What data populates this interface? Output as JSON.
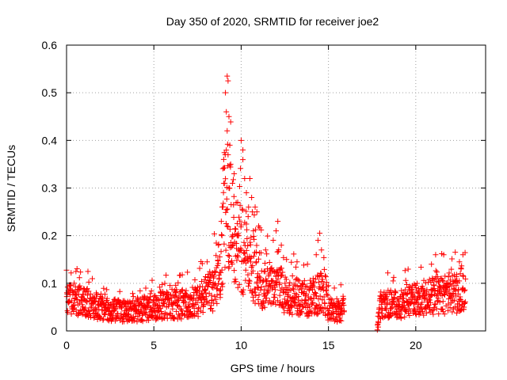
{
  "chart_data": {
    "type": "scatter",
    "title": "Day 350 of 2020, SRMTID for receiver joe2",
    "xlabel": "GPS time / hours",
    "ylabel": "SRMTID / TECUs",
    "xlim": [
      0,
      24
    ],
    "ylim": [
      0,
      0.6
    ],
    "x_ticks": [
      0,
      5,
      10,
      15,
      20
    ],
    "x_tick_labels": [
      "0",
      "5",
      "10",
      "15",
      "20"
    ],
    "y_ticks": [
      0,
      0.1,
      0.2,
      0.3,
      0.4,
      0.5,
      0.6
    ],
    "y_tick_labels": [
      "0",
      "0.1",
      "0.2",
      "0.3",
      "0.4",
      "0.5",
      "0.6"
    ],
    "grid": true,
    "marker": "+",
    "color": "#ff0000",
    "gap_hours": [
      15.9,
      17.8
    ],
    "series": [
      {
        "name": "SRMTID",
        "profile": [
          [
            0.0,
            0.07
          ],
          [
            0.5,
            0.065
          ],
          [
            1.0,
            0.06
          ],
          [
            1.5,
            0.055
          ],
          [
            2.0,
            0.05
          ],
          [
            2.5,
            0.045
          ],
          [
            3.0,
            0.042
          ],
          [
            3.5,
            0.04
          ],
          [
            4.0,
            0.042
          ],
          [
            4.5,
            0.045
          ],
          [
            5.0,
            0.05
          ],
          [
            5.5,
            0.055
          ],
          [
            6.0,
            0.055
          ],
          [
            6.5,
            0.055
          ],
          [
            7.0,
            0.058
          ],
          [
            7.5,
            0.062
          ],
          [
            8.0,
            0.075
          ],
          [
            8.5,
            0.095
          ],
          [
            8.8,
            0.14
          ],
          [
            9.0,
            0.22
          ],
          [
            9.2,
            0.28
          ],
          [
            9.4,
            0.23
          ],
          [
            9.7,
            0.18
          ],
          [
            10.0,
            0.17
          ],
          [
            10.3,
            0.165
          ],
          [
            10.6,
            0.14
          ],
          [
            11.0,
            0.11
          ],
          [
            11.5,
            0.095
          ],
          [
            12.0,
            0.09
          ],
          [
            12.5,
            0.085
          ],
          [
            13.0,
            0.075
          ],
          [
            13.5,
            0.07
          ],
          [
            14.0,
            0.065
          ],
          [
            14.3,
            0.075
          ],
          [
            14.6,
            0.085
          ],
          [
            15.0,
            0.045
          ],
          [
            15.5,
            0.04
          ],
          [
            15.9,
            0.05
          ],
          [
            17.8,
            0.01
          ],
          [
            18.0,
            0.06
          ],
          [
            18.5,
            0.055
          ],
          [
            19.0,
            0.055
          ],
          [
            19.5,
            0.06
          ],
          [
            20.0,
            0.065
          ],
          [
            20.5,
            0.07
          ],
          [
            21.0,
            0.075
          ],
          [
            21.5,
            0.08
          ],
          [
            22.0,
            0.075
          ],
          [
            22.5,
            0.085
          ],
          [
            22.8,
            0.095
          ]
        ],
        "highlights": [
          [
            9.2,
            0.535
          ],
          [
            9.25,
            0.525
          ],
          [
            9.1,
            0.5
          ],
          [
            9.15,
            0.46
          ],
          [
            9.3,
            0.45
          ],
          [
            9.2,
            0.42
          ],
          [
            9.35,
            0.39
          ],
          [
            9.25,
            0.37
          ],
          [
            9.0,
            0.36
          ],
          [
            9.4,
            0.35
          ],
          [
            9.6,
            0.33
          ],
          [
            9.5,
            0.31
          ],
          [
            10.0,
            0.4
          ],
          [
            10.1,
            0.38
          ],
          [
            10.2,
            0.32
          ],
          [
            10.5,
            0.32
          ],
          [
            10.3,
            0.29
          ],
          [
            10.6,
            0.28
          ],
          [
            9.3,
            0.3
          ],
          [
            10.8,
            0.26
          ],
          [
            10.9,
            0.25
          ],
          [
            9.8,
            0.27
          ],
          [
            10.4,
            0.24
          ],
          [
            11.0,
            0.22
          ],
          [
            12.1,
            0.23
          ],
          [
            12.0,
            0.21
          ],
          [
            14.5,
            0.205
          ],
          [
            14.4,
            0.19
          ],
          [
            14.6,
            0.17
          ],
          [
            14.3,
            0.16
          ],
          [
            12.3,
            0.18
          ],
          [
            13.2,
            0.145
          ],
          [
            21.6,
            0.16
          ],
          [
            22.7,
            0.16
          ],
          [
            22.5,
            0.145
          ],
          [
            8.7,
            0.18
          ],
          [
            8.9,
            0.2
          ],
          [
            10.7,
            0.21
          ],
          [
            11.4,
            0.17
          ],
          [
            12.6,
            0.15
          ],
          [
            13.8,
            0.14
          ],
          [
            20.9,
            0.14
          ],
          [
            17.8,
            0.002
          ],
          [
            17.85,
            0.008
          ]
        ]
      }
    ]
  }
}
